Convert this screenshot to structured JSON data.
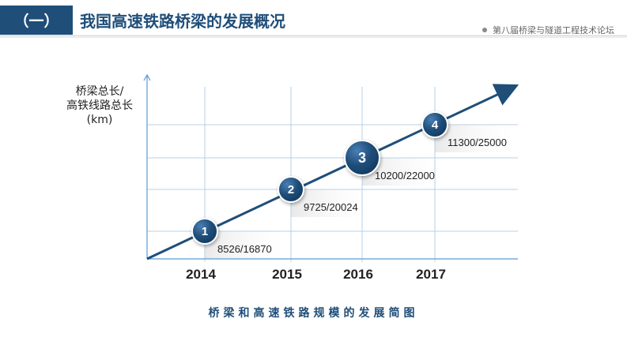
{
  "header": {
    "section_tag": "（一）",
    "title": "我国高速铁路桥梁的发展概况",
    "conference": "第八届桥梁与隧道工程技术论坛"
  },
  "chart": {
    "ylabel_lines": [
      "桥梁总长/",
      "高铁线路总长",
      "(km)"
    ],
    "caption": "桥梁和高速铁路规模的发展简图",
    "colors": {
      "accent": "#1f4e79",
      "badge": "#2a5b8e",
      "grid": "#b8d0e4",
      "axis": "#5b9bd5"
    }
  },
  "chart_data": {
    "type": "line",
    "categories": [
      "2014",
      "2015",
      "2016",
      "2017"
    ],
    "points": [
      {
        "year": "2014",
        "step": "1",
        "label": "8526/16870",
        "bridge_km": 8526,
        "hsr_km": 16870
      },
      {
        "year": "2015",
        "step": "2",
        "label": "9725/20024",
        "bridge_km": 9725,
        "hsr_km": 20024
      },
      {
        "year": "2016",
        "step": "3",
        "label": "10200/22000",
        "bridge_km": 10200,
        "hsr_km": 22000
      },
      {
        "year": "2017",
        "step": "4",
        "label": "11300/25000",
        "bridge_km": 11300,
        "hsr_km": 25000
      }
    ]
  }
}
